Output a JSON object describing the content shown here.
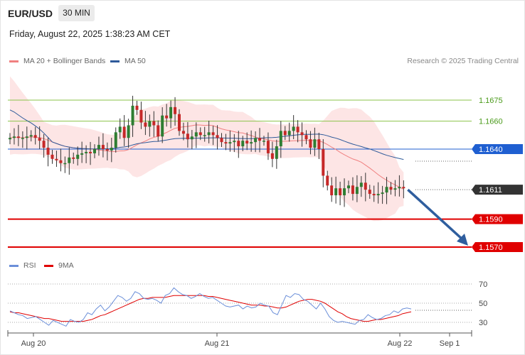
{
  "header": {
    "pair": "EUR/USD",
    "timeframe": "30 MIN",
    "datetime": "Friday, August 22, 2025 1:38:23 AM CET"
  },
  "legend": {
    "ma20_label": "MA 20 + Bollinger Bands",
    "ma50_label": "MA 50",
    "credit": "Research © 2025 Trading Central",
    "rsi_label": "RSI",
    "ma9_label": "9MA"
  },
  "colors": {
    "ma20": "#f08080",
    "ma50": "#2e5a9a",
    "band_fill": "#fde1e1",
    "up_candle": "#2e7d32",
    "down_candle": "#c62828",
    "resistance": "#8bc34a",
    "support": "#e00000",
    "pivot": "#1f5fd1",
    "current": "#333333",
    "arrow": "#2f5e9e",
    "rsi": "#6b8fd9",
    "ma9": "#e00000"
  },
  "chart_data": [
    {
      "type": "candlestick",
      "x_labels": [
        "Aug 20",
        "Aug 21",
        "Aug 22",
        "Sep 1"
      ],
      "ylim": [
        1.1555,
        1.1705
      ],
      "levels": [
        {
          "value": 1.1675,
          "label": "1.1675",
          "kind": "resistance"
        },
        {
          "value": 1.166,
          "label": "1.1660",
          "kind": "resistance"
        },
        {
          "value": 1.164,
          "label": "1.1640",
          "kind": "pivot"
        },
        {
          "value": 1.1611,
          "label": "1.1611",
          "kind": "current"
        },
        {
          "value": 1.159,
          "label": "1.1590",
          "kind": "support"
        },
        {
          "value": 1.157,
          "label": "1.1570",
          "kind": "support"
        }
      ],
      "forecast_arrow": {
        "from": 1.1611,
        "to": 1.157
      },
      "close": [
        1.1648,
        1.1649,
        1.1648,
        1.1648,
        1.1649,
        1.165,
        1.1648,
        1.1646,
        1.1641,
        1.1636,
        1.1633,
        1.1632,
        1.163,
        1.163,
        1.1634,
        1.1633,
        1.1636,
        1.1637,
        1.1638,
        1.1637,
        1.164,
        1.1643,
        1.164,
        1.1639,
        1.1641,
        1.1652,
        1.1656,
        1.1648,
        1.1657,
        1.1671,
        1.1668,
        1.1659,
        1.1656,
        1.166,
        1.1657,
        1.1649,
        1.1664,
        1.1662,
        1.167,
        1.1665,
        1.1653,
        1.1651,
        1.1647,
        1.1649,
        1.1652,
        1.165,
        1.165,
        1.1652,
        1.165,
        1.1648,
        1.1645,
        1.1644,
        1.1645,
        1.1646,
        1.1642,
        1.1646,
        1.1644,
        1.1645,
        1.1648,
        1.1646,
        1.1646,
        1.1637,
        1.1633,
        1.1642,
        1.1653,
        1.165,
        1.1653,
        1.1656,
        1.1652,
        1.165,
        1.1647,
        1.1641,
        1.1647,
        1.164,
        1.1621,
        1.1614,
        1.1607,
        1.1612,
        1.1607,
        1.1612,
        1.1614,
        1.1608,
        1.1613,
        1.1616,
        1.1611,
        1.1608,
        1.1607,
        1.1608,
        1.1609,
        1.1613,
        1.1611,
        1.1612,
        1.1613,
        1.1612
      ],
      "rsi_panel": {
        "yticks": [
          30,
          50,
          70
        ],
        "ylim": [
          20,
          80
        ],
        "rsi": [
          42,
          40,
          38,
          37,
          34,
          35,
          36,
          33,
          30,
          27,
          32,
          30,
          28,
          26,
          33,
          31,
          30,
          33,
          40,
          38,
          44,
          48,
          42,
          46,
          52,
          58,
          56,
          52,
          55,
          62,
          60,
          55,
          54,
          55,
          53,
          50,
          58,
          60,
          66,
          62,
          59,
          58,
          55,
          57,
          60,
          57,
          55,
          56,
          53,
          50,
          47,
          46,
          47,
          48,
          44,
          47,
          45,
          46,
          50,
          48,
          47,
          40,
          38,
          48,
          58,
          56,
          60,
          59,
          54,
          52,
          48,
          44,
          50,
          44,
          36,
          32,
          30,
          31,
          30,
          29,
          28,
          32,
          33,
          38,
          35,
          33,
          34,
          37,
          38,
          42,
          40,
          44,
          45,
          44
        ],
        "ma9": [
          41,
          40,
          40,
          39,
          38,
          37,
          36,
          35,
          34,
          34,
          33,
          32,
          31,
          31,
          31,
          31,
          31,
          31,
          32,
          33,
          35,
          37,
          38,
          40,
          42,
          44,
          46,
          48,
          50,
          52,
          54,
          55,
          55,
          56,
          56,
          56,
          56,
          57,
          58,
          58,
          58,
          58,
          58,
          58,
          58,
          58,
          57,
          57,
          56,
          55,
          54,
          53,
          52,
          51,
          50,
          49,
          48,
          48,
          48,
          47,
          47,
          46,
          45,
          45,
          46,
          48,
          50,
          52,
          53,
          54,
          54,
          53,
          52,
          50,
          47,
          44,
          41,
          39,
          36,
          34,
          33,
          32,
          31,
          31,
          32,
          33,
          33,
          34,
          35,
          36,
          37,
          39,
          40,
          41
        ]
      }
    }
  ]
}
